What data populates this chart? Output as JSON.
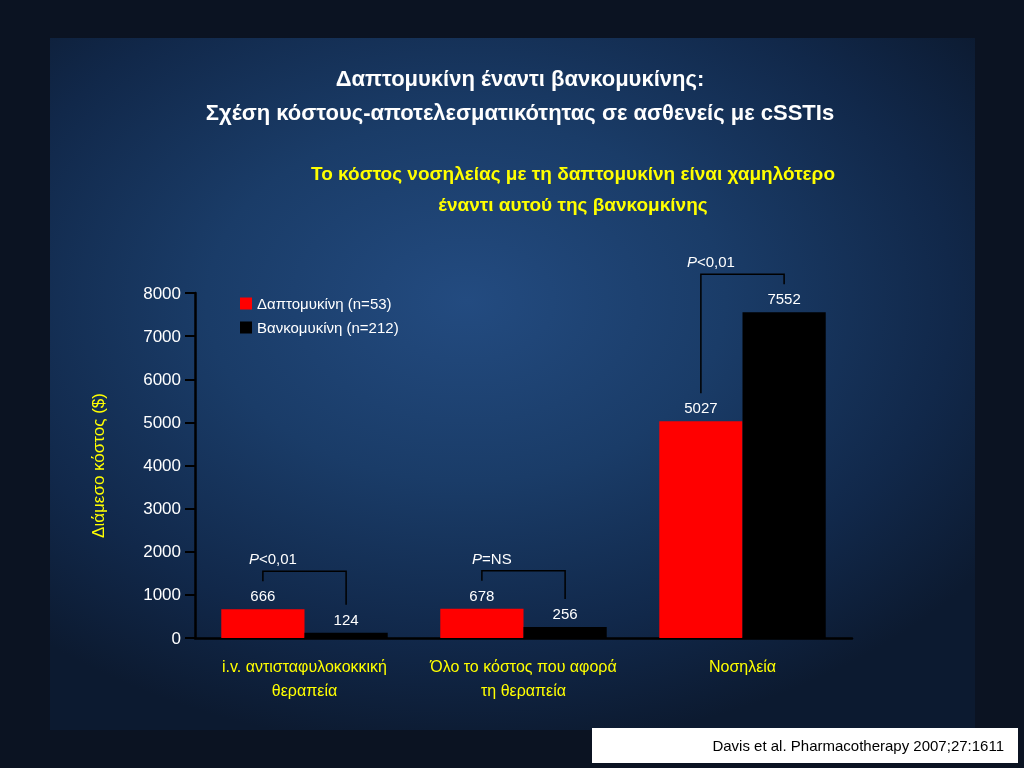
{
  "chart_data": {
    "type": "bar",
    "title": "Δαπτομυκίνη έναντι βανκομυκίνης:\nΣχέση κόστους-αποτελεσματικότητας σε ασθενείς με cSSTIs",
    "subtitle": "Το κόστος νοσηλείας με τη δαπτομυκίνη είναι χαμηλότερο\nέναντι αυτού της βανκομκίνης",
    "ylabel": "Διάμεσο κόστος ($)",
    "categories": [
      "i.v. αντισταφυλοκοκκική θεραπεία",
      "Όλο το κόστος που αφορά τη θεραπεία",
      "Νοσηλεία"
    ],
    "series": [
      {
        "name": "Δαπτομυκίνη (n=53)",
        "color": "#ff0000",
        "values": [
          666,
          678,
          5027
        ]
      },
      {
        "name": "Βανκομυκίνη (n=212)",
        "color": "#000000",
        "values": [
          124,
          256,
          7552
        ]
      }
    ],
    "ylim": [
      0,
      8000
    ],
    "yticks": [
      0,
      1000,
      2000,
      3000,
      4000,
      5000,
      6000,
      7000,
      8000
    ],
    "data_labels": true,
    "legend": "top left",
    "annotations": [
      {
        "text": "P<0,01",
        "x": "i.v. αντισταφυλοκοκκική θεραπεία",
        "y": 666
      },
      {
        "text": "P=NS",
        "x": "Όλο το κόστος που αφορά τη θεραπεία",
        "y": 678
      },
      {
        "text": "P<0,01",
        "x": "Νοσηλεία",
        "y": 7552
      },
      "Davis et al. Pharmacotherapy 2007;27:1611"
    ]
  }
}
